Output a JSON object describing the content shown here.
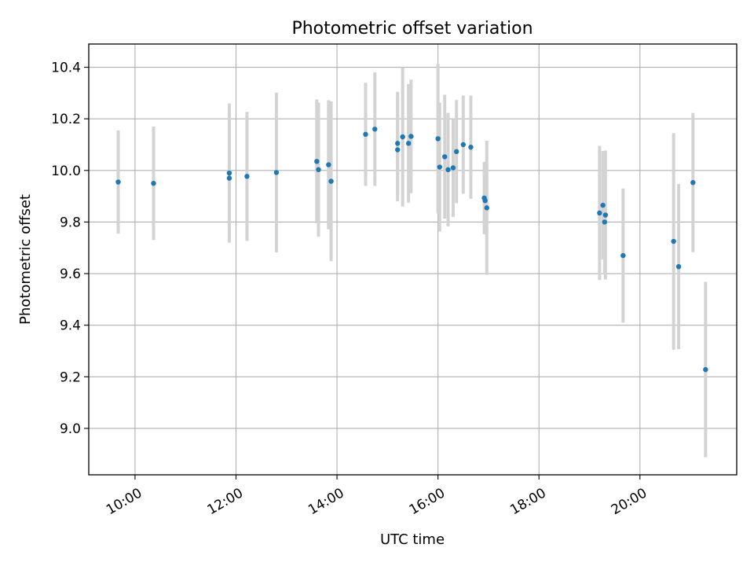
{
  "chart_data": {
    "type": "scatter",
    "title": "Photometric offset variation",
    "xlabel": "UTC time",
    "ylabel": "Photometric offset",
    "xlim": [
      "09:05",
      "21:55"
    ],
    "ylim": [
      8.82,
      10.49
    ],
    "x_ticks": [
      "10:00",
      "12:00",
      "14:00",
      "16:00",
      "18:00",
      "20:00"
    ],
    "y_ticks": [
      9.0,
      9.2,
      9.4,
      9.6,
      9.8,
      10.0,
      10.2,
      10.4
    ],
    "grid": true,
    "legend": "none",
    "colors": {
      "point": "#1f77b4",
      "errorbar": "#d3d3d3",
      "grid": "#b0b0b0"
    },
    "series": [
      {
        "points": [
          {
            "t": "09:40",
            "y": 9.955,
            "err": 0.2
          },
          {
            "t": "10:22",
            "y": 9.95,
            "err": 0.22
          },
          {
            "t": "11:52",
            "y": 9.99,
            "err": 0.27
          },
          {
            "t": "11:52",
            "y": 9.97,
            "err": 0.25
          },
          {
            "t": "12:13",
            "y": 9.977,
            "err": 0.25
          },
          {
            "t": "12:48",
            "y": 9.992,
            "err": 0.31
          },
          {
            "t": "13:36",
            "y": 10.035,
            "err": 0.24
          },
          {
            "t": "13:38",
            "y": 10.003,
            "err": 0.26
          },
          {
            "t": "13:50",
            "y": 10.022,
            "err": 0.25
          },
          {
            "t": "13:53",
            "y": 9.958,
            "err": 0.31
          },
          {
            "t": "14:34",
            "y": 10.14,
            "err": 0.2
          },
          {
            "t": "14:45",
            "y": 10.16,
            "err": 0.22
          },
          {
            "t": "15:12",
            "y": 10.105,
            "err": 0.2
          },
          {
            "t": "15:12",
            "y": 10.08,
            "err": 0.2
          },
          {
            "t": "15:18",
            "y": 10.13,
            "err": 0.27
          },
          {
            "t": "15:25",
            "y": 10.105,
            "err": 0.23
          },
          {
            "t": "15:28",
            "y": 10.132,
            "err": 0.22
          },
          {
            "t": "16:00",
            "y": 10.123,
            "err": 0.29
          },
          {
            "t": "16:02",
            "y": 10.013,
            "err": 0.25
          },
          {
            "t": "16:08",
            "y": 10.053,
            "err": 0.24
          },
          {
            "t": "16:12",
            "y": 10.003,
            "err": 0.22
          },
          {
            "t": "16:18",
            "y": 10.01,
            "err": 0.19
          },
          {
            "t": "16:22",
            "y": 10.073,
            "err": 0.2
          },
          {
            "t": "16:30",
            "y": 10.1,
            "err": 0.19
          },
          {
            "t": "16:39",
            "y": 10.09,
            "err": 0.2
          },
          {
            "t": "16:55",
            "y": 9.893,
            "err": 0.14
          },
          {
            "t": "16:56",
            "y": 9.883,
            "err": 0.13
          },
          {
            "t": "16:58",
            "y": 9.855,
            "err": 0.26
          },
          {
            "t": "19:12",
            "y": 9.835,
            "err": 0.26
          },
          {
            "t": "19:16",
            "y": 9.865,
            "err": 0.21
          },
          {
            "t": "19:18",
            "y": 9.8,
            "err": 0.2
          },
          {
            "t": "19:19",
            "y": 9.827,
            "err": 0.25
          },
          {
            "t": "19:40",
            "y": 9.67,
            "err": 0.26
          },
          {
            "t": "20:40",
            "y": 9.725,
            "err": 0.42
          },
          {
            "t": "20:46",
            "y": 9.627,
            "err": 0.32
          },
          {
            "t": "21:03",
            "y": 9.953,
            "err": 0.27
          },
          {
            "t": "21:18",
            "y": 9.228,
            "err": 0.34
          }
        ]
      }
    ]
  }
}
